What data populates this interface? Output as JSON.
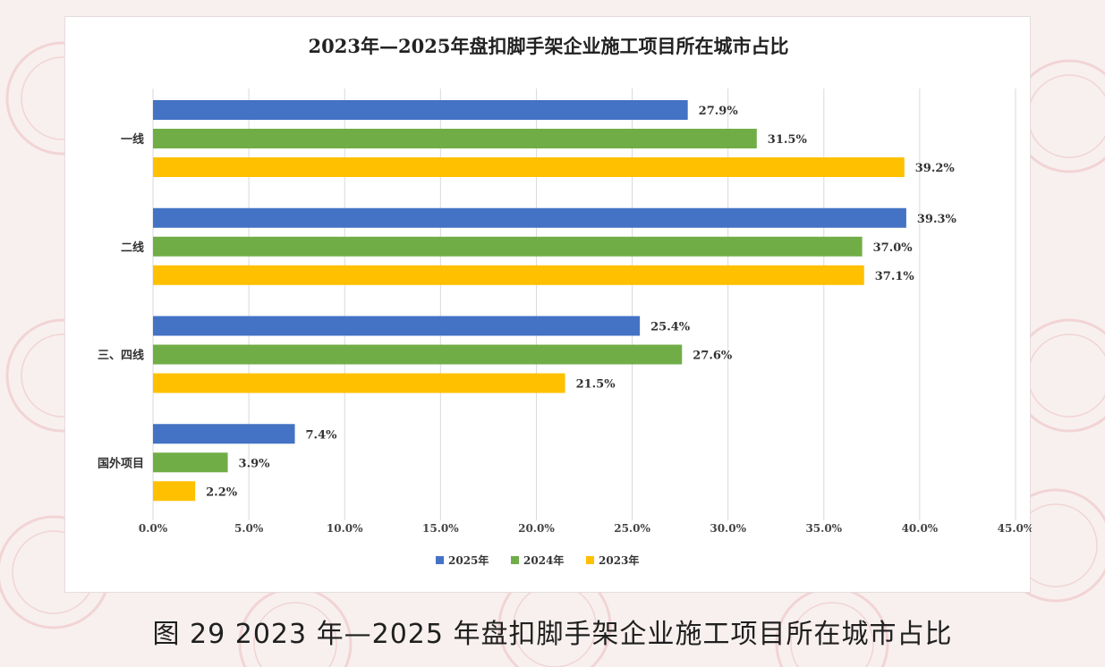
{
  "figure": {
    "caption": "图 29  2023 年—2025 年盘扣脚手架企业施工项目所在城市占比"
  },
  "colors": {
    "series_2025": "#4472c4",
    "series_2024": "#70ad47",
    "series_2023": "#ffc000",
    "gridline": "#d9d9d9",
    "watermark": "#f2d4d4"
  },
  "chart_data": {
    "type": "bar",
    "orientation": "horizontal",
    "title": "2023年—2025年盘扣脚手架企业施工项目所在城市占比",
    "categories": [
      "一线",
      "二线",
      "三、四线",
      "国外项目"
    ],
    "series": [
      {
        "name": "2025年",
        "values": [
          27.9,
          39.3,
          25.4,
          7.4
        ],
        "labels": [
          "27.9%",
          "39.3%",
          "25.4%",
          "7.4%"
        ]
      },
      {
        "name": "2024年",
        "values": [
          31.5,
          37.0,
          27.6,
          3.9
        ],
        "labels": [
          "31.5%",
          "37.0%",
          "27.6%",
          "3.9%"
        ]
      },
      {
        "name": "2023年",
        "values": [
          39.2,
          37.1,
          21.5,
          2.2
        ],
        "labels": [
          "39.2%",
          "37.1%",
          "21.5%",
          "2.2%"
        ]
      }
    ],
    "xlim": [
      0,
      45
    ],
    "x_ticks": [
      0,
      5,
      10,
      15,
      20,
      25,
      30,
      35,
      40,
      45
    ],
    "x_tick_labels": [
      "0.0%",
      "5.0%",
      "10.0%",
      "15.0%",
      "20.0%",
      "25.0%",
      "30.0%",
      "35.0%",
      "40.0%",
      "45.0%"
    ],
    "grid": "vertical",
    "legend": "bottom-center",
    "xlabel": "",
    "ylabel": ""
  }
}
